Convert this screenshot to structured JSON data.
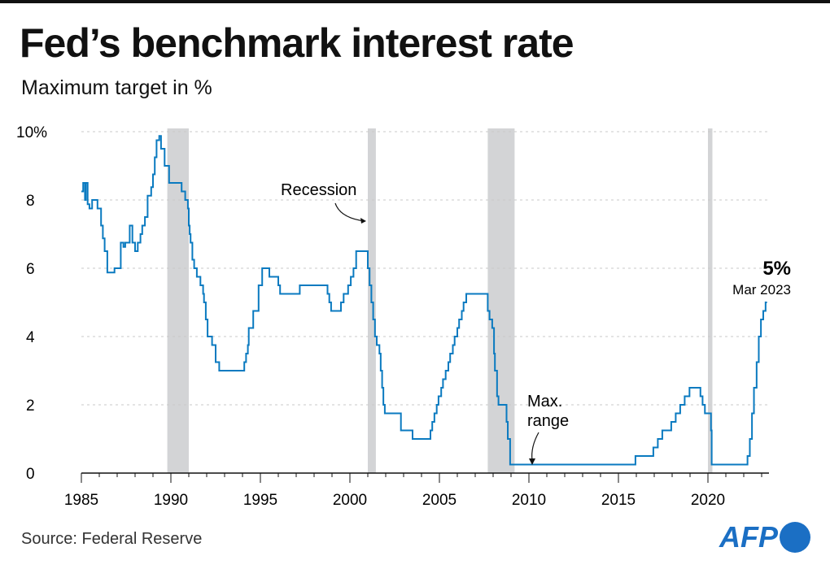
{
  "title": "Fed’s benchmark interest rate",
  "subtitle": "Maximum target in %",
  "source": "Source: Federal Reserve",
  "logo": "AFP",
  "chart_data": {
    "type": "line",
    "step": true,
    "xlim": [
      1985,
      2023.3
    ],
    "ylim": [
      0,
      10
    ],
    "grid": true,
    "line_color": "#0a7ac0",
    "recession_color": "#d3d4d6",
    "x_ticks": [
      "1985",
      "1990",
      "1995",
      "2000",
      "2005",
      "2010",
      "2015",
      "2020"
    ],
    "y_ticks": [
      "0",
      "2",
      "4",
      "6",
      "8",
      "10%"
    ],
    "recessions": [
      [
        1989.8,
        1991.0
      ],
      [
        2001.0,
        2001.45
      ],
      [
        2007.7,
        2009.2
      ],
      [
        2020.0,
        2020.25
      ]
    ],
    "annotations": {
      "recession": "Recession",
      "max_range_1": "Max.",
      "max_range_2": "range",
      "last_value": "5%",
      "last_date": "Mar 2023"
    },
    "points": [
      [
        1985.0,
        8.25
      ],
      [
        1985.1,
        8.5
      ],
      [
        1985.2,
        8.0
      ],
      [
        1985.25,
        8.5
      ],
      [
        1985.35,
        7.875
      ],
      [
        1985.45,
        7.75
      ],
      [
        1985.6,
        8.0
      ],
      [
        1985.9,
        7.75
      ],
      [
        1986.1,
        7.25
      ],
      [
        1986.2,
        6.875
      ],
      [
        1986.3,
        6.5
      ],
      [
        1986.45,
        5.875
      ],
      [
        1986.85,
        6.0
      ],
      [
        1987.2,
        6.75
      ],
      [
        1987.35,
        6.625
      ],
      [
        1987.45,
        6.75
      ],
      [
        1987.7,
        7.25
      ],
      [
        1987.85,
        6.75
      ],
      [
        1988.0,
        6.5
      ],
      [
        1988.15,
        6.75
      ],
      [
        1988.3,
        7.0
      ],
      [
        1988.4,
        7.25
      ],
      [
        1988.55,
        7.5
      ],
      [
        1988.7,
        8.125
      ],
      [
        1988.9,
        8.375
      ],
      [
        1989.0,
        8.75
      ],
      [
        1989.1,
        9.25
      ],
      [
        1989.2,
        9.75
      ],
      [
        1989.35,
        9.875
      ],
      [
        1989.45,
        9.5
      ],
      [
        1989.65,
        9.0
      ],
      [
        1989.9,
        8.5
      ],
      [
        1990.6,
        8.25
      ],
      [
        1990.8,
        8.0
      ],
      [
        1990.95,
        7.75
      ],
      [
        1991.0,
        7.25
      ],
      [
        1991.05,
        7.0
      ],
      [
        1991.1,
        6.75
      ],
      [
        1991.2,
        6.25
      ],
      [
        1991.3,
        6.0
      ],
      [
        1991.45,
        5.75
      ],
      [
        1991.65,
        5.5
      ],
      [
        1991.8,
        5.25
      ],
      [
        1991.85,
        5.0
      ],
      [
        1991.95,
        4.5
      ],
      [
        1992.05,
        4.0
      ],
      [
        1992.3,
        3.75
      ],
      [
        1992.5,
        3.25
      ],
      [
        1992.7,
        3.0
      ],
      [
        1994.1,
        3.25
      ],
      [
        1994.2,
        3.5
      ],
      [
        1994.3,
        3.75
      ],
      [
        1994.35,
        4.25
      ],
      [
        1994.6,
        4.75
      ],
      [
        1994.9,
        5.5
      ],
      [
        1995.1,
        6.0
      ],
      [
        1995.5,
        5.75
      ],
      [
        1996.0,
        5.5
      ],
      [
        1996.1,
        5.25
      ],
      [
        1997.2,
        5.5
      ],
      [
        1998.75,
        5.25
      ],
      [
        1998.85,
        5.0
      ],
      [
        1998.95,
        4.75
      ],
      [
        1999.5,
        5.0
      ],
      [
        1999.65,
        5.25
      ],
      [
        1999.9,
        5.5
      ],
      [
        2000.05,
        5.75
      ],
      [
        2000.2,
        6.0
      ],
      [
        2000.35,
        6.5
      ],
      [
        2001.0,
        6.0
      ],
      [
        2001.1,
        5.5
      ],
      [
        2001.2,
        5.0
      ],
      [
        2001.3,
        4.5
      ],
      [
        2001.4,
        4.0
      ],
      [
        2001.5,
        3.75
      ],
      [
        2001.65,
        3.5
      ],
      [
        2001.72,
        3.0
      ],
      [
        2001.8,
        2.5
      ],
      [
        2001.87,
        2.0
      ],
      [
        2001.95,
        1.75
      ],
      [
        2002.85,
        1.25
      ],
      [
        2003.5,
        1.0
      ],
      [
        2004.5,
        1.25
      ],
      [
        2004.6,
        1.5
      ],
      [
        2004.72,
        1.75
      ],
      [
        2004.85,
        2.0
      ],
      [
        2004.95,
        2.25
      ],
      [
        2005.1,
        2.5
      ],
      [
        2005.2,
        2.75
      ],
      [
        2005.35,
        3.0
      ],
      [
        2005.5,
        3.25
      ],
      [
        2005.6,
        3.5
      ],
      [
        2005.75,
        3.75
      ],
      [
        2005.85,
        4.0
      ],
      [
        2006.0,
        4.25
      ],
      [
        2006.1,
        4.5
      ],
      [
        2006.25,
        4.75
      ],
      [
        2006.35,
        5.0
      ],
      [
        2006.5,
        5.25
      ],
      [
        2007.7,
        4.75
      ],
      [
        2007.8,
        4.5
      ],
      [
        2007.95,
        4.25
      ],
      [
        2008.05,
        3.5
      ],
      [
        2008.1,
        3.0
      ],
      [
        2008.22,
        2.25
      ],
      [
        2008.3,
        2.0
      ],
      [
        2008.75,
        1.5
      ],
      [
        2008.82,
        1.0
      ],
      [
        2008.95,
        0.25
      ],
      [
        2015.95,
        0.5
      ],
      [
        2016.95,
        0.75
      ],
      [
        2017.2,
        1.0
      ],
      [
        2017.45,
        1.25
      ],
      [
        2017.95,
        1.5
      ],
      [
        2018.2,
        1.75
      ],
      [
        2018.45,
        2.0
      ],
      [
        2018.7,
        2.25
      ],
      [
        2018.97,
        2.5
      ],
      [
        2019.58,
        2.25
      ],
      [
        2019.7,
        2.0
      ],
      [
        2019.83,
        1.75
      ],
      [
        2020.17,
        1.25
      ],
      [
        2020.21,
        0.25
      ],
      [
        2022.21,
        0.5
      ],
      [
        2022.34,
        1.0
      ],
      [
        2022.46,
        1.75
      ],
      [
        2022.57,
        2.5
      ],
      [
        2022.72,
        3.25
      ],
      [
        2022.84,
        4.0
      ],
      [
        2022.96,
        4.5
      ],
      [
        2023.09,
        4.75
      ],
      [
        2023.22,
        5.0
      ]
    ]
  }
}
